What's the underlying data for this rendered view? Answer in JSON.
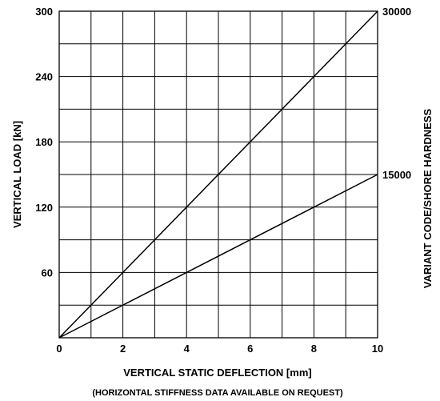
{
  "chart_data": {
    "type": "line",
    "x_label": "VERTICAL STATIC DEFLECTION [mm]",
    "x_note": "(HORIZONTAL STIFFNESS DATA AVAILABLE ON REQUEST)",
    "y_label": "VERTICAL LOAD [kN]",
    "y2_label": "VARIANT CODE/SHORE HARDNESS",
    "x_range": [
      0,
      10
    ],
    "y_range": [
      0,
      300
    ],
    "x_ticks": [
      "0",
      "2",
      "4",
      "6",
      "8",
      "10"
    ],
    "y_ticks": [
      "60",
      "120",
      "180",
      "240",
      "300"
    ],
    "grid": true,
    "grid_x_step": 1,
    "grid_y_step": 30,
    "series": [
      {
        "end_label": "30000",
        "points": [
          [
            0,
            0
          ],
          [
            10,
            300
          ]
        ]
      },
      {
        "end_label": "15000",
        "points": [
          [
            0,
            0
          ],
          [
            10,
            150
          ]
        ]
      }
    ],
    "colors": {
      "line": "#000000",
      "grid": "#000000"
    }
  }
}
